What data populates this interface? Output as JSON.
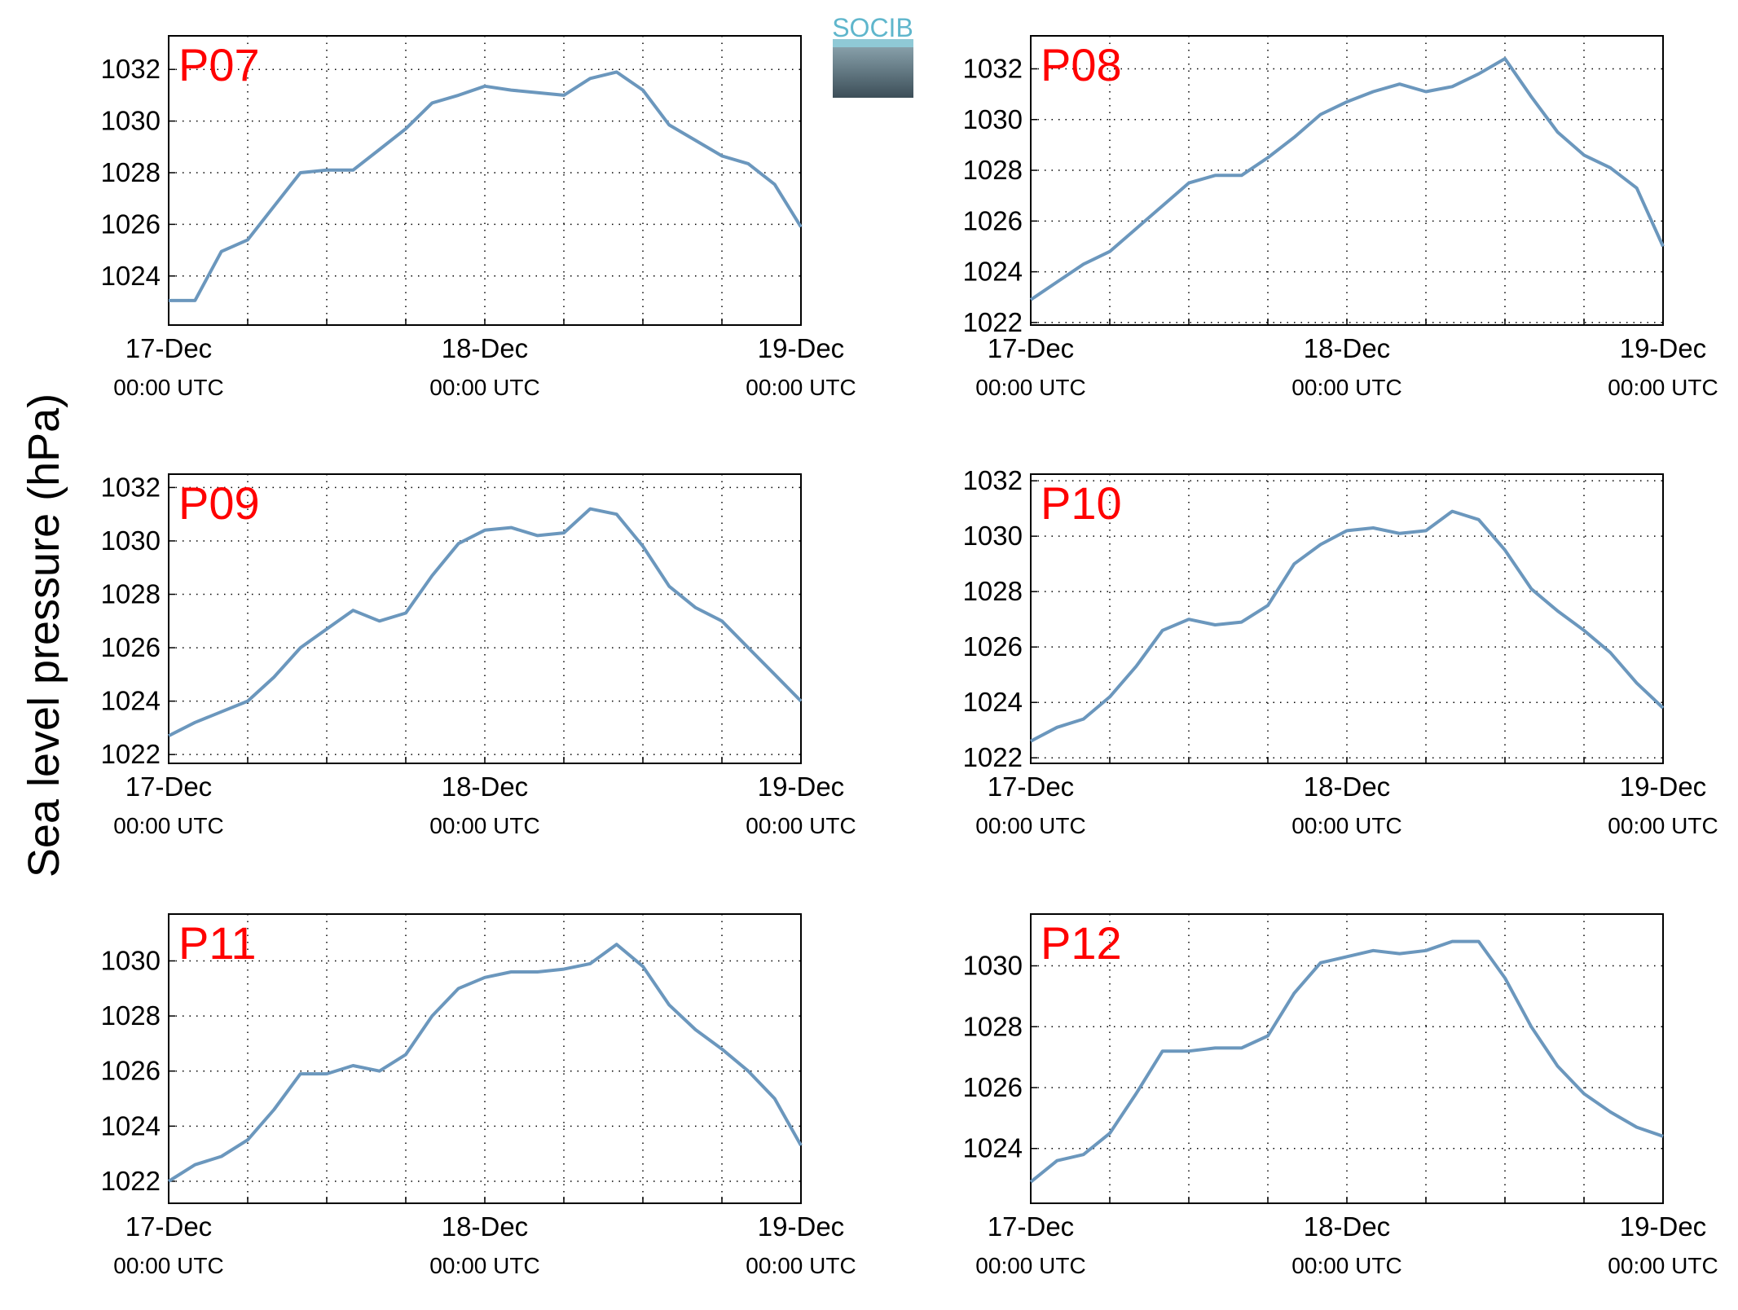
{
  "ylabel": "Sea level pressure (hPa)",
  "logo": "SOCIB",
  "chart_data": [
    {
      "type": "line",
      "title": "P07",
      "x": [
        0,
        2,
        4,
        6,
        8,
        10,
        12,
        14,
        16,
        18,
        20,
        22,
        24,
        26,
        28,
        30,
        32,
        34,
        36,
        38,
        40,
        42,
        44,
        46,
        48
      ],
      "xlim": [
        0,
        48
      ],
      "xticks": [
        {
          "value": 0,
          "label": "17-Dec\n00:00 UTC"
        },
        {
          "value": 24,
          "label": "18-Dec\n00:00 UTC"
        },
        {
          "value": 48,
          "label": "19-Dec\n00:00 UTC"
        }
      ],
      "xminor": [
        6,
        12,
        18,
        30,
        36,
        42
      ],
      "ylim": [
        1022.1,
        1033.3
      ],
      "yticks": [
        1024,
        1026,
        1028,
        1030,
        1032
      ],
      "grid": true,
      "series": [
        {
          "color": "#6b97bd",
          "values": [
            1023.05,
            1023.05,
            1024.95,
            1025.4,
            1026.7,
            1028.0,
            1028.1,
            1028.1,
            1028.9,
            1029.7,
            1030.7,
            1031.0,
            1031.35,
            1031.2,
            1031.1,
            1031.0,
            1031.65,
            1031.9,
            1031.2,
            1029.85,
            1029.25,
            1028.65,
            1028.35,
            1027.55,
            1025.9
          ]
        }
      ]
    },
    {
      "type": "line",
      "title": "P08",
      "x": [
        0,
        2,
        4,
        6,
        8,
        10,
        12,
        14,
        16,
        18,
        20,
        22,
        24,
        26,
        28,
        30,
        32,
        34,
        36,
        38,
        40,
        42,
        44,
        46,
        48
      ],
      "xlim": [
        0,
        48
      ],
      "xticks": [
        {
          "value": 0,
          "label": "17-Dec\n00:00 UTC"
        },
        {
          "value": 24,
          "label": "18-Dec\n00:00 UTC"
        },
        {
          "value": 48,
          "label": "19-Dec\n00:00 UTC"
        }
      ],
      "xminor": [
        6,
        12,
        18,
        30,
        36,
        42
      ],
      "ylim": [
        1021.9,
        1033.3
      ],
      "yticks": [
        1022,
        1024,
        1026,
        1028,
        1030,
        1032
      ],
      "grid": true,
      "series": [
        {
          "color": "#6b97bd",
          "values": [
            1022.9,
            1023.6,
            1024.3,
            1024.8,
            1025.7,
            1026.6,
            1027.5,
            1027.8,
            1027.8,
            1028.5,
            1029.3,
            1030.2,
            1030.7,
            1031.1,
            1031.4,
            1031.1,
            1031.3,
            1031.8,
            1032.4,
            1030.9,
            1029.5,
            1028.6,
            1028.1,
            1027.3,
            1025.0
          ]
        }
      ]
    },
    {
      "type": "line",
      "title": "P09",
      "x": [
        0,
        2,
        4,
        6,
        8,
        10,
        12,
        14,
        16,
        18,
        20,
        22,
        24,
        26,
        28,
        30,
        32,
        34,
        36,
        38,
        40,
        42,
        44,
        46,
        48
      ],
      "xlim": [
        0,
        48
      ],
      "xticks": [
        {
          "value": 0,
          "label": "17-Dec\n00:00 UTC"
        },
        {
          "value": 24,
          "label": "18-Dec\n00:00 UTC"
        },
        {
          "value": 48,
          "label": "19-Dec\n00:00 UTC"
        }
      ],
      "xminor": [
        6,
        12,
        18,
        30,
        36,
        42
      ],
      "ylim": [
        1021.67,
        1032.5
      ],
      "yticks": [
        1022,
        1024,
        1026,
        1028,
        1030,
        1032
      ],
      "grid": true,
      "series": [
        {
          "color": "#6b97bd",
          "values": [
            1022.7,
            1023.2,
            1023.6,
            1024.0,
            1024.9,
            1026.0,
            1026.7,
            1027.4,
            1027.0,
            1027.3,
            1028.7,
            1029.9,
            1030.4,
            1030.5,
            1030.2,
            1030.3,
            1031.2,
            1031.0,
            1029.8,
            1028.3,
            1027.5,
            1027.0,
            1026.0,
            1025.0,
            1024.0
          ]
        }
      ]
    },
    {
      "type": "line",
      "title": "P10",
      "x": [
        0,
        2,
        4,
        6,
        8,
        10,
        12,
        14,
        16,
        18,
        20,
        22,
        24,
        26,
        28,
        30,
        32,
        34,
        36,
        38,
        40,
        42,
        44,
        46,
        48
      ],
      "xlim": [
        0,
        48
      ],
      "xticks": [
        {
          "value": 0,
          "label": "17-Dec\n00:00 UTC"
        },
        {
          "value": 24,
          "label": "18-Dec\n00:00 UTC"
        },
        {
          "value": 48,
          "label": "19-Dec\n00:00 UTC"
        }
      ],
      "xminor": [
        6,
        12,
        18,
        30,
        36,
        42
      ],
      "ylim": [
        1021.8,
        1032.24
      ],
      "yticks": [
        1022,
        1024,
        1026,
        1028,
        1030,
        1032
      ],
      "grid": true,
      "series": [
        {
          "color": "#6b97bd",
          "values": [
            1022.6,
            1023.1,
            1023.4,
            1024.2,
            1025.3,
            1026.6,
            1027.0,
            1026.8,
            1026.9,
            1027.5,
            1029.0,
            1029.7,
            1030.2,
            1030.3,
            1030.1,
            1030.2,
            1030.9,
            1030.6,
            1029.5,
            1028.1,
            1027.3,
            1026.6,
            1025.8,
            1024.7,
            1023.8
          ]
        }
      ]
    },
    {
      "type": "line",
      "title": "P11",
      "x": [
        0,
        2,
        4,
        6,
        8,
        10,
        12,
        14,
        16,
        18,
        20,
        22,
        24,
        26,
        28,
        30,
        32,
        34,
        36,
        38,
        40,
        42,
        44,
        46,
        48
      ],
      "xlim": [
        0,
        48
      ],
      "xticks": [
        {
          "value": 0,
          "label": "17-Dec\n00:00 UTC"
        },
        {
          "value": 24,
          "label": "18-Dec\n00:00 UTC"
        },
        {
          "value": 48,
          "label": "19-Dec\n00:00 UTC"
        }
      ],
      "xminor": [
        6,
        12,
        18,
        30,
        36,
        42
      ],
      "ylim": [
        1021.2,
        1031.7
      ],
      "yticks": [
        1022,
        1024,
        1026,
        1028,
        1030
      ],
      "grid": true,
      "series": [
        {
          "color": "#6b97bd",
          "values": [
            1022.0,
            1022.6,
            1022.9,
            1023.5,
            1024.6,
            1025.9,
            1025.9,
            1026.2,
            1026.0,
            1026.6,
            1028.0,
            1029.0,
            1029.4,
            1029.6,
            1029.6,
            1029.7,
            1029.9,
            1030.6,
            1029.8,
            1028.4,
            1027.5,
            1026.8,
            1026.0,
            1025.0,
            1023.3
          ]
        }
      ]
    },
    {
      "type": "line",
      "title": "P12",
      "x": [
        0,
        2,
        4,
        6,
        8,
        10,
        12,
        14,
        16,
        18,
        20,
        22,
        24,
        26,
        28,
        30,
        32,
        34,
        36,
        38,
        40,
        42,
        44,
        46,
        48
      ],
      "xlim": [
        0,
        48
      ],
      "xticks": [
        {
          "value": 0,
          "label": "17-Dec\n00:00 UTC"
        },
        {
          "value": 24,
          "label": "18-Dec\n00:00 UTC"
        },
        {
          "value": 48,
          "label": "19-Dec\n00:00 UTC"
        }
      ],
      "xminor": [
        6,
        12,
        18,
        30,
        36,
        42
      ],
      "ylim": [
        1022.2,
        1031.7
      ],
      "yticks": [
        1024,
        1026,
        1028,
        1030
      ],
      "grid": true,
      "series": [
        {
          "color": "#6b97bd",
          "values": [
            1022.9,
            1023.6,
            1023.8,
            1024.5,
            1025.8,
            1027.2,
            1027.2,
            1027.3,
            1027.3,
            1027.7,
            1029.1,
            1030.1,
            1030.3,
            1030.5,
            1030.4,
            1030.5,
            1030.8,
            1030.8,
            1029.6,
            1028.0,
            1026.7,
            1025.8,
            1025.2,
            1024.7,
            1024.4
          ]
        }
      ]
    }
  ]
}
